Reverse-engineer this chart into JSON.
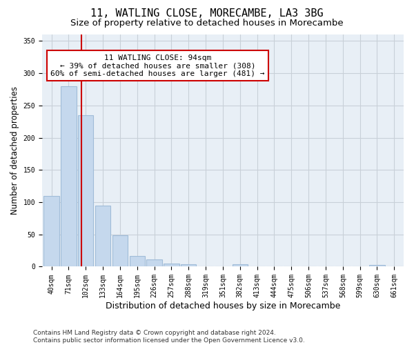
{
  "title1": "11, WATLING CLOSE, MORECAMBE, LA3 3BG",
  "title2": "Size of property relative to detached houses in Morecambe",
  "xlabel": "Distribution of detached houses by size in Morecambe",
  "ylabel": "Number of detached properties",
  "categories": [
    "40sqm",
    "71sqm",
    "102sqm",
    "133sqm",
    "164sqm",
    "195sqm",
    "226sqm",
    "257sqm",
    "288sqm",
    "319sqm",
    "351sqm",
    "382sqm",
    "413sqm",
    "444sqm",
    "475sqm",
    "506sqm",
    "537sqm",
    "568sqm",
    "599sqm",
    "630sqm",
    "661sqm"
  ],
  "values": [
    110,
    280,
    235,
    95,
    49,
    17,
    11,
    5,
    4,
    0,
    0,
    4,
    0,
    0,
    0,
    0,
    0,
    0,
    0,
    3,
    0
  ],
  "bar_color": "#c5d8ed",
  "bar_edgecolor": "#a0bcd8",
  "vline_x": 1.75,
  "vline_color": "#cc0000",
  "annotation_text": "11 WATLING CLOSE: 94sqm\n← 39% of detached houses are smaller (308)\n60% of semi-detached houses are larger (481) →",
  "annotation_box_edgecolor": "#cc0000",
  "annotation_box_facecolor": "#ffffff",
  "ylim": [
    0,
    360
  ],
  "yticks": [
    0,
    50,
    100,
    150,
    200,
    250,
    300,
    350
  ],
  "grid_color": "#c8d0d8",
  "bg_color": "#e8eff6",
  "footer": "Contains HM Land Registry data © Crown copyright and database right 2024.\nContains public sector information licensed under the Open Government Licence v3.0.",
  "title1_fontsize": 11,
  "title2_fontsize": 9.5,
  "xlabel_fontsize": 9,
  "ylabel_fontsize": 8.5,
  "tick_fontsize": 7,
  "annotation_fontsize": 8,
  "footer_fontsize": 6.5
}
